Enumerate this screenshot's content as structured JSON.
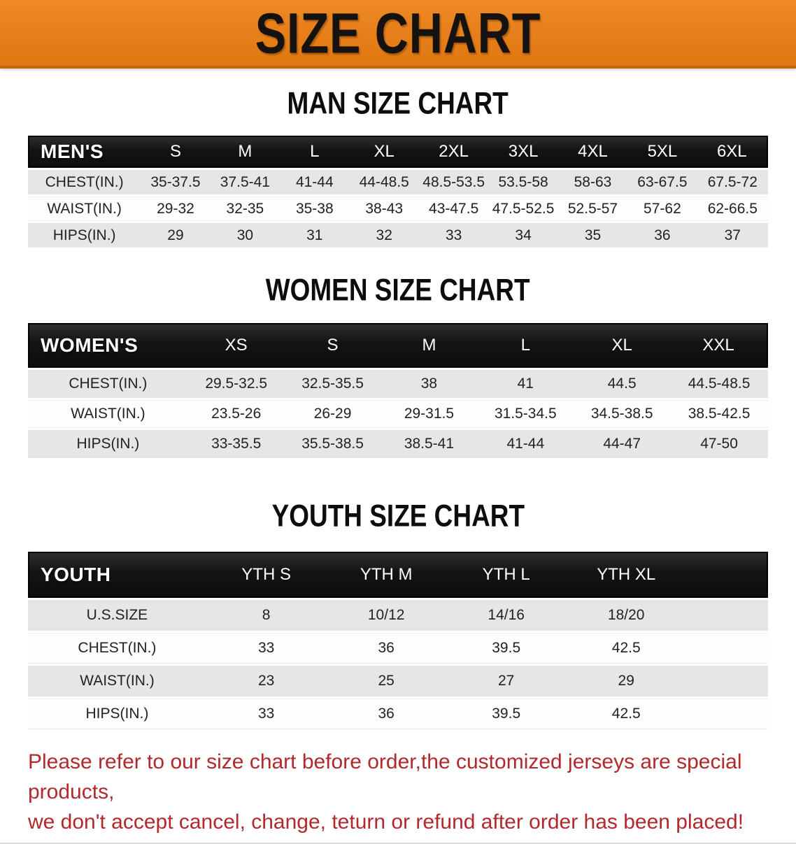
{
  "banner": {
    "title": "SIZE CHART"
  },
  "sections": [
    {
      "heading": "MAN SIZE CHART",
      "table": {
        "header_label": "MEN'S",
        "columns": [
          "S",
          "M",
          "L",
          "XL",
          "2XL",
          "3XL",
          "4XL",
          "5XL",
          "6XL"
        ],
        "rows": [
          {
            "label": "CHEST(IN.)",
            "values": [
              "35-37.5",
              "37.5-41",
              "41-44",
              "44-48.5",
              "48.5-53.5",
              "53.5-58",
              "58-63",
              "63-67.5",
              "67.5-72"
            ]
          },
          {
            "label": "WAIST(IN.)",
            "values": [
              "29-32",
              "32-35",
              "35-38",
              "38-43",
              "43-47.5",
              "47.5-52.5",
              "52.5-57",
              "57-62",
              "62-66.5"
            ]
          },
          {
            "label": "HIPS(IN.)",
            "values": [
              "29",
              "30",
              "31",
              "32",
              "33",
              "34",
              "35",
              "36",
              "37"
            ]
          }
        ]
      }
    },
    {
      "heading": "WOMEN SIZE CHART",
      "table": {
        "header_label": "WOMEN'S",
        "columns": [
          "XS",
          "S",
          "M",
          "L",
          "XL",
          "XXL"
        ],
        "rows": [
          {
            "label": "CHEST(IN.)",
            "values": [
              "29.5-32.5",
              "32.5-35.5",
              "38",
              "41",
              "44.5",
              "44.5-48.5"
            ]
          },
          {
            "label": "WAIST(IN.)",
            "values": [
              "23.5-26",
              "26-29",
              "29-31.5",
              "31.5-34.5",
              "34.5-38.5",
              "38.5-42.5"
            ]
          },
          {
            "label": "HIPS(IN.)",
            "values": [
              "33-35.5",
              "35.5-38.5",
              "38.5-41",
              "41-44",
              "44-47",
              "47-50"
            ]
          }
        ]
      }
    },
    {
      "heading": "YOUTH SIZE CHART",
      "table": {
        "header_label": "YOUTH",
        "columns": [
          "YTH S",
          "YTH M",
          "YTH L",
          "YTH XL"
        ],
        "rows": [
          {
            "label": "U.S.SIZE",
            "values": [
              "8",
              "10/12",
              "14/16",
              "18/20"
            ]
          },
          {
            "label": "CHEST(IN.)",
            "values": [
              "33",
              "36",
              "39.5",
              "42.5"
            ]
          },
          {
            "label": "WAIST(IN.)",
            "values": [
              "23",
              "25",
              "27",
              "29"
            ]
          },
          {
            "label": "HIPS(IN.)",
            "values": [
              "33",
              "36",
              "39.5",
              "42.5"
            ]
          }
        ]
      }
    }
  ],
  "disclaimer": {
    "line1": "Please refer to our size chart before order,the customized jerseys are special products,",
    "line2": "we don't accept cancel, change, teturn or refund after order has been placed!"
  },
  "colors": {
    "banner_orange": "#e67e19",
    "banner_border": "#c2660f",
    "table_header_black": "#131313",
    "stripe_gray": "#e6e6e6",
    "disclaimer_red": "#b2282b"
  }
}
